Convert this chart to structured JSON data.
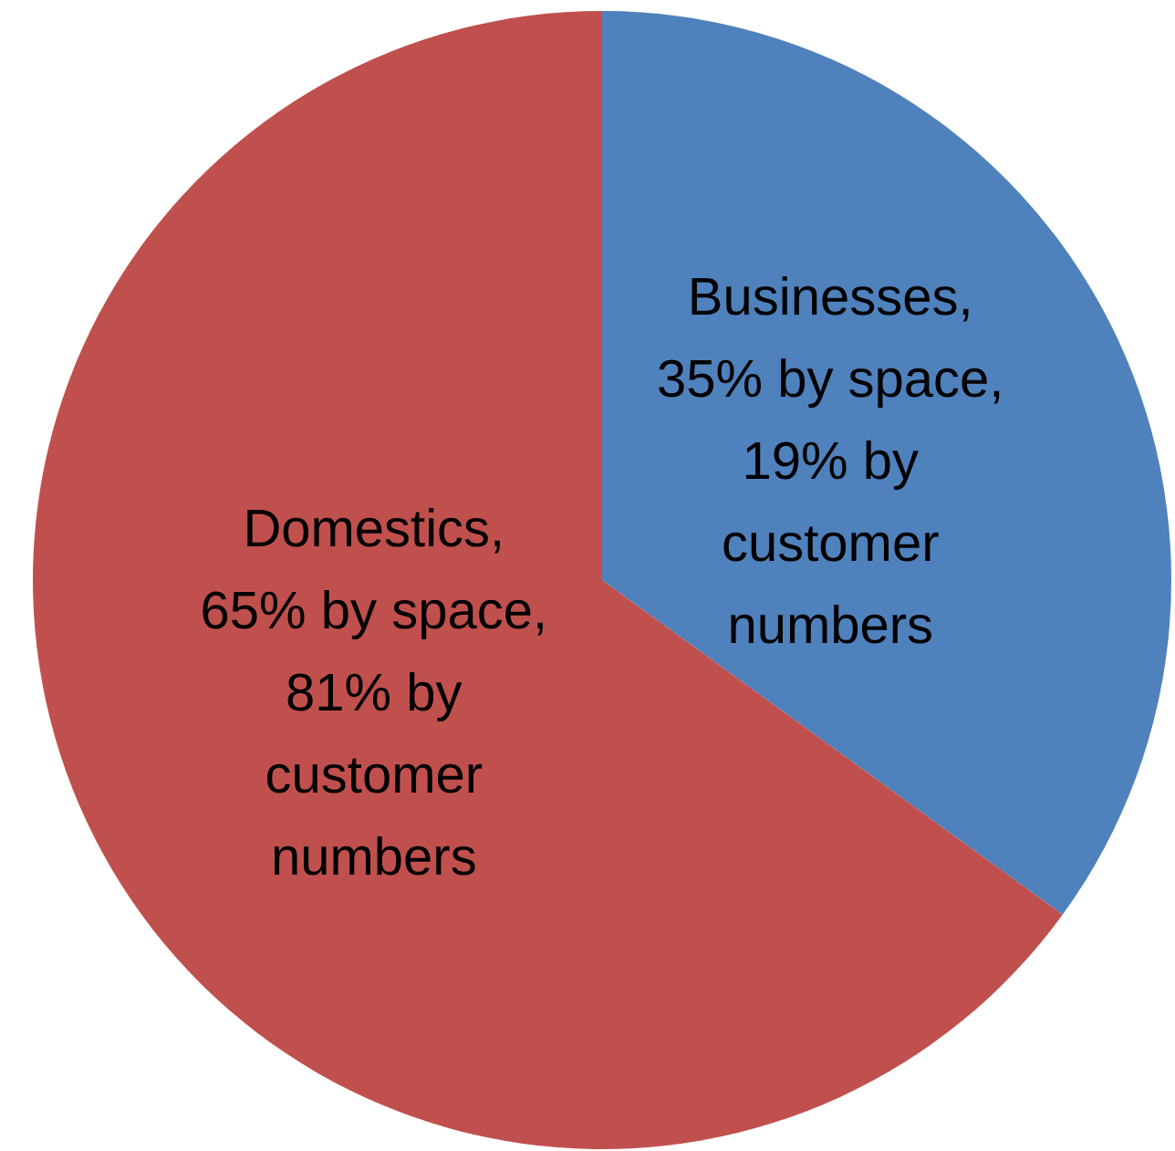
{
  "chart_data": {
    "type": "pie",
    "categories": [
      "Businesses, 35% by space, 19% by customer numbers",
      "Domestics, 65% by space, 81% by customer numbers"
    ],
    "values": [
      35,
      65
    ],
    "colors": [
      "#4f81bd",
      "#c0504d"
    ],
    "legend": false
  }
}
